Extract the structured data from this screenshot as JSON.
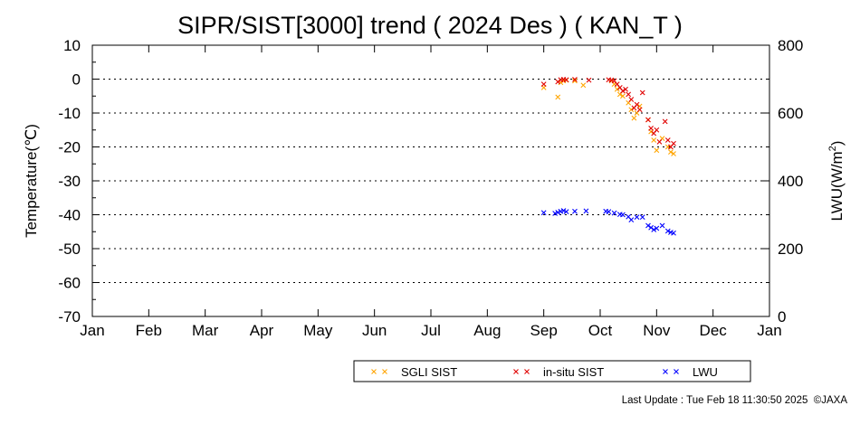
{
  "chart_data": {
    "type": "scatter",
    "title": "SIPR/SIST[3000] trend ( 2024 Des ) ( KAN_T )",
    "ylabel": "Temperature(℃)",
    "y2label_main": "LWU(W/m",
    "y2label_sup": "2",
    "y2label_end": ")",
    "x_ticks": [
      "Jan",
      "Feb",
      "Mar",
      "Apr",
      "May",
      "Jun",
      "Jul",
      "Aug",
      "Sep",
      "Oct",
      "Nov",
      "Dec",
      "Jan"
    ],
    "ylim": [
      -70,
      10
    ],
    "y_ticks": [
      "10",
      "0",
      "-10",
      "-20",
      "-30",
      "-40",
      "-50",
      "-60",
      "-70"
    ],
    "y2lim": [
      0,
      800
    ],
    "y2_ticks": [
      "800",
      "600",
      "400",
      "200",
      "0"
    ],
    "grid": "horizontal dotted",
    "legend_placement": "bottom-center",
    "series": [
      {
        "name": "SGLI SIST",
        "color": "#ffa500",
        "axis": "left",
        "points": [
          [
            9.0,
            -2.5
          ],
          [
            9.25,
            -5.3
          ],
          [
            9.3,
            -1.0
          ],
          [
            9.35,
            -0.5
          ],
          [
            9.4,
            -0.3
          ],
          [
            9.55,
            -0.5
          ],
          [
            9.7,
            -1.8
          ],
          [
            10.2,
            -0.5
          ],
          [
            10.25,
            -1.5
          ],
          [
            10.3,
            -3.0
          ],
          [
            10.35,
            -4.5
          ],
          [
            10.4,
            -5.0
          ],
          [
            10.5,
            -7.0
          ],
          [
            10.55,
            -9.0
          ],
          [
            10.6,
            -11.5
          ],
          [
            10.65,
            -10.0
          ],
          [
            10.7,
            -8.0
          ],
          [
            10.85,
            -12.0
          ],
          [
            10.9,
            -15.5
          ],
          [
            10.95,
            -18.0
          ],
          [
            11.0,
            -21.0
          ],
          [
            11.1,
            -17.5
          ],
          [
            11.2,
            -20.0
          ],
          [
            11.25,
            -21.5
          ],
          [
            11.3,
            -22.0
          ]
        ]
      },
      {
        "name": "in-situ SIST",
        "color": "#e00000",
        "axis": "left",
        "points": [
          [
            9.0,
            -1.5
          ],
          [
            9.25,
            -0.8
          ],
          [
            9.3,
            -0.2
          ],
          [
            9.35,
            -0.1
          ],
          [
            9.4,
            -0.2
          ],
          [
            9.55,
            -0.1
          ],
          [
            9.8,
            -0.3
          ],
          [
            10.15,
            -0.2
          ],
          [
            10.2,
            -0.3
          ],
          [
            10.25,
            -0.5
          ],
          [
            10.3,
            -1.5
          ],
          [
            10.35,
            -2.5
          ],
          [
            10.4,
            -3.5
          ],
          [
            10.45,
            -3.0
          ],
          [
            10.5,
            -4.5
          ],
          [
            10.55,
            -6.0
          ],
          [
            10.6,
            -8.5
          ],
          [
            10.65,
            -7.5
          ],
          [
            10.7,
            -9.0
          ],
          [
            10.75,
            -4.0
          ],
          [
            10.85,
            -12.0
          ],
          [
            10.9,
            -14.5
          ],
          [
            10.95,
            -16.0
          ],
          [
            11.0,
            -15.0
          ],
          [
            11.05,
            -18.5
          ],
          [
            11.15,
            -12.5
          ],
          [
            11.2,
            -18.0
          ],
          [
            11.25,
            -20.0
          ],
          [
            11.3,
            -19.0
          ]
        ]
      },
      {
        "name": "LWU",
        "color": "#0000ff",
        "axis": "right",
        "points": [
          [
            9.0,
            306
          ],
          [
            9.2,
            304
          ],
          [
            9.25,
            307
          ],
          [
            9.3,
            310
          ],
          [
            9.35,
            312
          ],
          [
            9.4,
            309
          ],
          [
            9.55,
            310
          ],
          [
            9.75,
            311
          ],
          [
            10.1,
            310
          ],
          [
            10.15,
            309
          ],
          [
            10.25,
            305
          ],
          [
            10.35,
            301
          ],
          [
            10.4,
            300
          ],
          [
            10.5,
            294
          ],
          [
            10.55,
            285
          ],
          [
            10.65,
            293
          ],
          [
            10.75,
            293
          ],
          [
            10.85,
            268
          ],
          [
            10.9,
            262
          ],
          [
            10.95,
            256
          ],
          [
            11.0,
            260
          ],
          [
            11.1,
            268
          ],
          [
            11.2,
            252
          ],
          [
            11.25,
            248
          ],
          [
            11.3,
            246
          ]
        ]
      }
    ]
  },
  "legend": {
    "items": [
      {
        "label": "SGLI SIST",
        "color": "#ffa500"
      },
      {
        "label": "in-situ SIST",
        "color": "#e00000"
      },
      {
        "label": "LWU",
        "color": "#0000ff"
      }
    ]
  },
  "footer": {
    "last_update": "Last Update : Tue Feb 18 11:30:50 2025  ©JAXA"
  }
}
